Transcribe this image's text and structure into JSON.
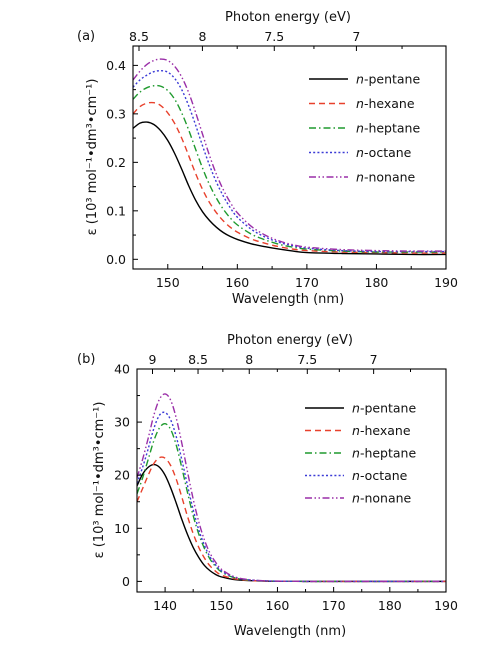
{
  "chart_data": [
    {
      "panel_label": "(a)",
      "type": "line",
      "xlabel": "Wavelength (nm)",
      "ylabel": "ε (10³ mol⁻¹•dm³•cm⁻¹)",
      "top_axis_label": "Photon energy (eV)",
      "xlim": [
        145,
        190
      ],
      "ylim": [
        -0.02,
        0.44
      ],
      "x_ticks": [
        150,
        160,
        170,
        180,
        190
      ],
      "y_ticks": [
        0.0,
        0.1,
        0.2,
        0.3,
        0.4
      ],
      "y_tick_labels": [
        "0.0",
        "0.1",
        "0.2",
        "0.3",
        "0.4"
      ],
      "top_ticks": [
        8.5,
        8,
        7.5,
        7
      ],
      "top_tick_labels": [
        "8.5",
        "8",
        "7.5",
        "7"
      ],
      "legend_position": "top-right",
      "series": [
        {
          "name": "n-pentane",
          "color": "#000000",
          "dash": "solid",
          "x": [
            145,
            146,
            147,
            148,
            149,
            150,
            151,
            152,
            153,
            154,
            155,
            156,
            157,
            158,
            159,
            160,
            162,
            164,
            166,
            168,
            170,
            175,
            180,
            185,
            190
          ],
          "y": [
            0.27,
            0.281,
            0.283,
            0.278,
            0.265,
            0.245,
            0.218,
            0.186,
            0.152,
            0.122,
            0.098,
            0.08,
            0.066,
            0.055,
            0.047,
            0.041,
            0.032,
            0.026,
            0.021,
            0.017,
            0.014,
            0.012,
            0.011,
            0.01,
            0.01
          ]
        },
        {
          "name": "n-hexane",
          "color": "#e8412c",
          "dash": "dash",
          "x": [
            145,
            146,
            147,
            148,
            149,
            150,
            151,
            152,
            153,
            154,
            155,
            156,
            157,
            158,
            159,
            160,
            162,
            164,
            166,
            168,
            170,
            175,
            180,
            185,
            190
          ],
          "y": [
            0.3,
            0.315,
            0.322,
            0.323,
            0.317,
            0.302,
            0.28,
            0.25,
            0.214,
            0.177,
            0.144,
            0.117,
            0.096,
            0.079,
            0.066,
            0.056,
            0.042,
            0.033,
            0.026,
            0.021,
            0.018,
            0.015,
            0.014,
            0.013,
            0.013
          ]
        },
        {
          "name": "n-heptane",
          "color": "#1f9a2e",
          "dash": "dashdot",
          "x": [
            145,
            146,
            147,
            148,
            149,
            150,
            151,
            152,
            153,
            154,
            155,
            156,
            157,
            158,
            159,
            160,
            162,
            164,
            166,
            168,
            170,
            175,
            180,
            185,
            190
          ],
          "y": [
            0.33,
            0.345,
            0.354,
            0.358,
            0.357,
            0.348,
            0.33,
            0.302,
            0.267,
            0.227,
            0.188,
            0.154,
            0.126,
            0.103,
            0.085,
            0.071,
            0.052,
            0.04,
            0.031,
            0.025,
            0.021,
            0.017,
            0.015,
            0.015,
            0.015
          ]
        },
        {
          "name": "n-octane",
          "color": "#3b3bd6",
          "dash": "dot",
          "x": [
            145,
            146,
            147,
            148,
            149,
            150,
            151,
            152,
            153,
            154,
            155,
            156,
            157,
            158,
            159,
            160,
            162,
            164,
            166,
            168,
            170,
            175,
            180,
            185,
            190
          ],
          "y": [
            0.355,
            0.37,
            0.38,
            0.387,
            0.389,
            0.386,
            0.373,
            0.35,
            0.317,
            0.277,
            0.234,
            0.194,
            0.159,
            0.13,
            0.106,
            0.087,
            0.062,
            0.046,
            0.035,
            0.028,
            0.023,
            0.018,
            0.016,
            0.016,
            0.016
          ]
        },
        {
          "name": "n-nonane",
          "color": "#9a2fa8",
          "dash": "dashdotdot",
          "x": [
            145,
            146,
            147,
            148,
            149,
            150,
            151,
            152,
            153,
            154,
            155,
            156,
            157,
            158,
            159,
            160,
            162,
            164,
            166,
            168,
            170,
            175,
            180,
            185,
            190
          ],
          "y": [
            0.37,
            0.388,
            0.402,
            0.41,
            0.413,
            0.41,
            0.398,
            0.376,
            0.344,
            0.303,
            0.258,
            0.214,
            0.175,
            0.143,
            0.117,
            0.096,
            0.068,
            0.05,
            0.038,
            0.03,
            0.025,
            0.02,
            0.018,
            0.017,
            0.017
          ]
        }
      ]
    },
    {
      "panel_label": "(b)",
      "type": "line",
      "xlabel": "Wavelength (nm)",
      "ylabel": "ε (10³ mol⁻¹•dm³•cm⁻¹)",
      "top_axis_label": "Photon energy (eV)",
      "xlim": [
        135,
        190
      ],
      "ylim": [
        -2,
        40
      ],
      "x_ticks": [
        140,
        150,
        160,
        170,
        180,
        190
      ],
      "y_ticks": [
        0,
        10,
        20,
        30,
        40
      ],
      "y_tick_labels": [
        "0",
        "10",
        "20",
        "30",
        "40"
      ],
      "top_ticks": [
        9,
        8.5,
        8,
        7.5,
        7
      ],
      "top_tick_labels": [
        "9",
        "8.5",
        "8",
        "7.5",
        "7"
      ],
      "legend_position": "top-right",
      "series": [
        {
          "name": "n-pentane",
          "color": "#000000",
          "dash": "solid",
          "x": [
            135,
            136,
            137,
            138,
            139,
            140,
            141,
            142,
            143,
            144,
            145,
            146,
            147,
            148,
            149,
            150,
            152,
            154,
            156,
            158,
            160,
            165,
            170,
            180,
            190
          ],
          "y": [
            18,
            20.2,
            21.5,
            22,
            21.5,
            20,
            17.6,
            14.7,
            11.6,
            8.8,
            6.4,
            4.5,
            3.0,
            2.0,
            1.3,
            0.85,
            0.4,
            0.2,
            0.1,
            0.05,
            0.02,
            0,
            0,
            0,
            0
          ]
        },
        {
          "name": "n-hexane",
          "color": "#e8412c",
          "dash": "dash",
          "x": [
            135,
            136,
            137,
            138,
            139,
            140,
            141,
            142,
            143,
            144,
            145,
            146,
            147,
            148,
            149,
            150,
            152,
            154,
            156,
            158,
            160,
            165,
            170,
            180,
            190
          ],
          "y": [
            15,
            17.5,
            20,
            22.2,
            23.3,
            23.2,
            21.8,
            19.2,
            15.8,
            12.2,
            9.0,
            6.4,
            4.4,
            2.9,
            1.9,
            1.2,
            0.55,
            0.25,
            0.12,
            0.06,
            0.03,
            0,
            0,
            0,
            0
          ]
        },
        {
          "name": "n-heptane",
          "color": "#1f9a2e",
          "dash": "dashdot",
          "x": [
            135,
            136,
            137,
            138,
            139,
            140,
            141,
            142,
            143,
            144,
            145,
            146,
            147,
            148,
            149,
            150,
            152,
            154,
            156,
            158,
            160,
            165,
            170,
            180,
            190
          ],
          "y": [
            16.5,
            19.5,
            23,
            26.5,
            28.9,
            29.7,
            28.6,
            25.6,
            21.3,
            16.7,
            12.4,
            8.9,
            6.2,
            4.2,
            2.8,
            1.8,
            0.8,
            0.36,
            0.17,
            0.08,
            0.04,
            0,
            0,
            0,
            0
          ]
        },
        {
          "name": "n-octane",
          "color": "#3b3bd6",
          "dash": "dot",
          "x": [
            135,
            136,
            137,
            138,
            139,
            140,
            141,
            142,
            143,
            144,
            145,
            146,
            147,
            148,
            149,
            150,
            152,
            154,
            156,
            158,
            160,
            165,
            170,
            180,
            190
          ],
          "y": [
            18.5,
            21.5,
            25,
            28.8,
            31.3,
            31.8,
            30.4,
            27.2,
            22.8,
            18.0,
            13.5,
            9.7,
            6.8,
            4.6,
            3.1,
            2.0,
            0.9,
            0.4,
            0.19,
            0.09,
            0.04,
            0,
            0,
            0,
            0
          ]
        },
        {
          "name": "n-nonane",
          "color": "#9a2fa8",
          "dash": "dashdotdot",
          "x": [
            135,
            136,
            137,
            138,
            139,
            140,
            141,
            142,
            143,
            144,
            145,
            146,
            147,
            148,
            149,
            150,
            152,
            154,
            156,
            158,
            160,
            165,
            170,
            180,
            190
          ],
          "y": [
            19.5,
            23,
            27,
            31.3,
            34.3,
            35.3,
            34.1,
            30.7,
            25.9,
            20.6,
            15.5,
            11.2,
            7.8,
            5.3,
            3.6,
            2.3,
            1.0,
            0.45,
            0.21,
            0.1,
            0.05,
            0,
            0,
            0,
            0
          ]
        }
      ]
    }
  ]
}
